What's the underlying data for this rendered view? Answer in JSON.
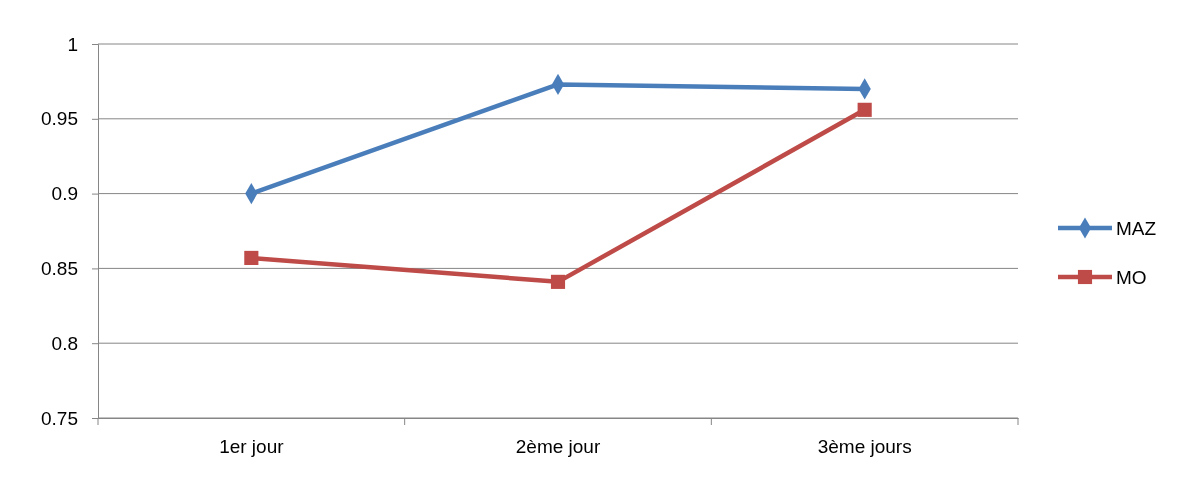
{
  "chart_data": {
    "type": "line",
    "categories": [
      "1er jour",
      "2ème jour",
      "3ème jours"
    ],
    "series": [
      {
        "name": "MAZ",
        "color": "#4a7ebb",
        "values": [
          0.9,
          0.973,
          0.97
        ],
        "marker": "diamond"
      },
      {
        "name": "MO",
        "color": "#be4b48",
        "values": [
          0.857,
          0.841,
          0.956
        ],
        "marker": "square"
      }
    ],
    "ylim": [
      0.75,
      1
    ],
    "yticks": [
      {
        "value": 0.75,
        "label": "0.75"
      },
      {
        "value": 0.8,
        "label": "0.8"
      },
      {
        "value": 0.85,
        "label": "0.85"
      },
      {
        "value": 0.9,
        "label": "0.9"
      },
      {
        "value": 0.95,
        "label": "0.95"
      },
      {
        "value": 1,
        "label": "1"
      }
    ],
    "grid": "y",
    "legend": "right",
    "line_style": "solid"
  }
}
